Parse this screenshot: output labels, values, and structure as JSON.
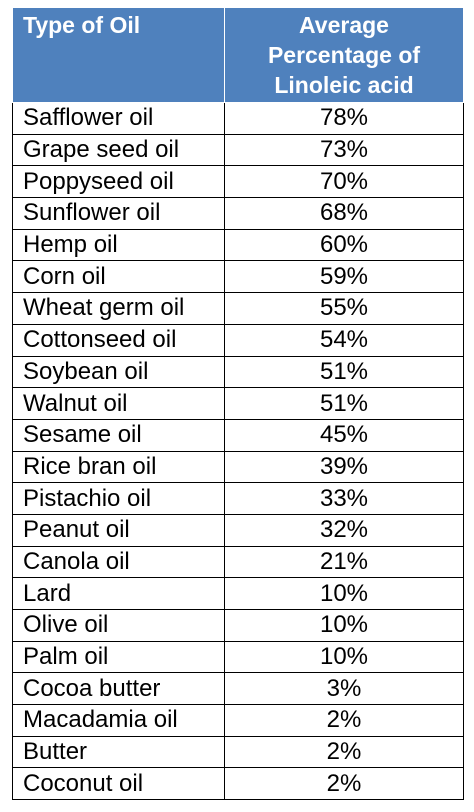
{
  "table": {
    "headers": {
      "oil": "Type of Oil",
      "percentage_lines": [
        "Average",
        "Percentage of",
        "Linoleic acid"
      ]
    },
    "rows": [
      {
        "oil": "Safflower oil",
        "percentage": "78%"
      },
      {
        "oil": "Grape seed oil",
        "percentage": "73%"
      },
      {
        "oil": "Poppyseed oil",
        "percentage": "70%"
      },
      {
        "oil": "Sunflower oil",
        "percentage": "68%"
      },
      {
        "oil": "Hemp oil",
        "percentage": "60%"
      },
      {
        "oil": "Corn oil",
        "percentage": "59%"
      },
      {
        "oil": "Wheat germ oil",
        "percentage": "55%"
      },
      {
        "oil": "Cottonseed oil",
        "percentage": "54%"
      },
      {
        "oil": "Soybean oil",
        "percentage": "51%"
      },
      {
        "oil": "Walnut oil",
        "percentage": "51%"
      },
      {
        "oil": "Sesame oil",
        "percentage": "45%"
      },
      {
        "oil": "Rice bran oil",
        "percentage": "39%"
      },
      {
        "oil": "Pistachio oil",
        "percentage": "33%"
      },
      {
        "oil": "Peanut oil",
        "percentage": "32%"
      },
      {
        "oil": "Canola oil",
        "percentage": "21%"
      },
      {
        "oil": "Lard",
        "percentage": "10%"
      },
      {
        "oil": "Olive oil",
        "percentage": "10%"
      },
      {
        "oil": "Palm oil",
        "percentage": "10%"
      },
      {
        "oil": "Cocoa butter",
        "percentage": "3%"
      },
      {
        "oil": "Macadamia oil",
        "percentage": "2%"
      },
      {
        "oil": "Butter",
        "percentage": "2%"
      },
      {
        "oil": "Coconut oil",
        "percentage": "2%"
      }
    ]
  },
  "colors": {
    "header_background": "#4f81bd",
    "header_text": "#ffffff",
    "cell_border": "#000000",
    "cell_text": "#000000"
  }
}
